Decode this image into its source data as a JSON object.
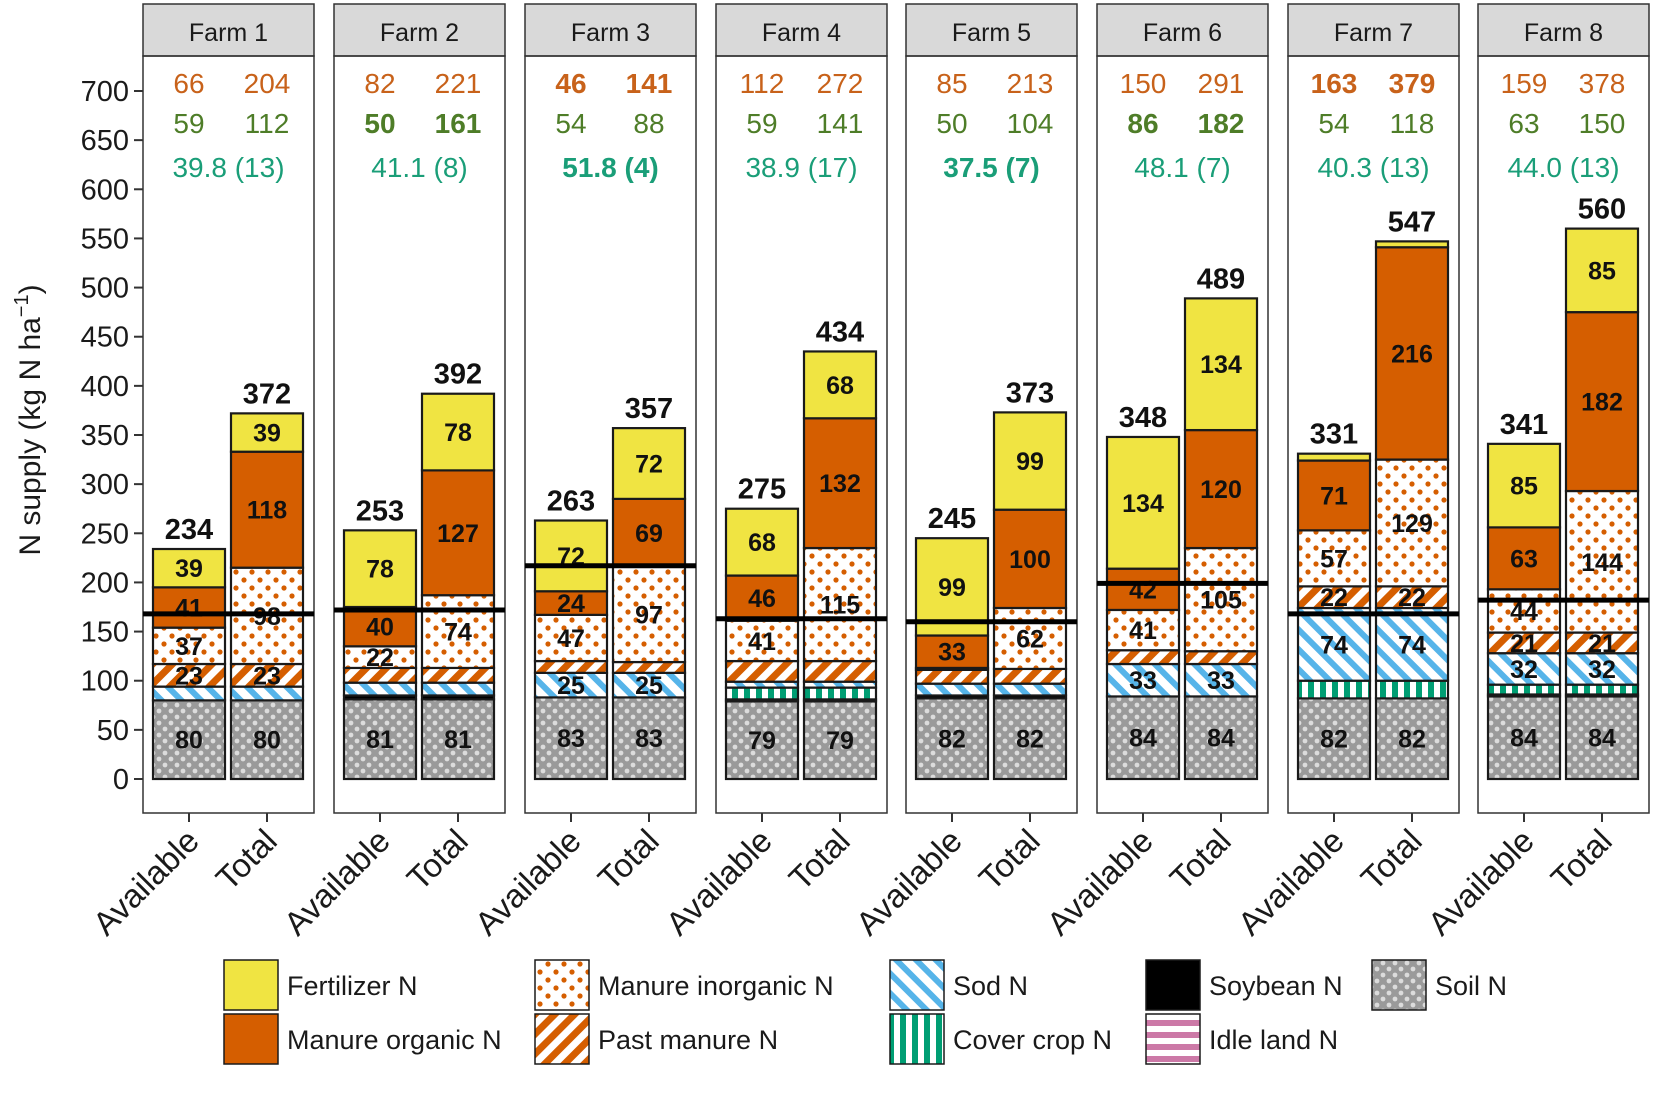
{
  "chart_data": {
    "type": "bar",
    "subtype": "stacked-faceted",
    "ylabel": "N supply (kg N ha",
    "ylabel_sup": "−1",
    "ylabel_close": ")",
    "ylim": [
      0,
      700
    ],
    "yticks": [
      "0",
      "50",
      "100",
      "150",
      "200",
      "250",
      "300",
      "350",
      "400",
      "450",
      "500",
      "550",
      "600",
      "650",
      "700"
    ],
    "categories": [
      "Available",
      "Total"
    ],
    "series": [
      {
        "name": "Soil N",
        "key": "soil"
      },
      {
        "name": "Soybean N",
        "key": "soybean"
      },
      {
        "name": "Cover crop N",
        "key": "cover"
      },
      {
        "name": "Sod N",
        "key": "sod"
      },
      {
        "name": "Idle land N",
        "key": "idle"
      },
      {
        "name": "Past manure N",
        "key": "past"
      },
      {
        "name": "Manure inorganic N",
        "key": "inorg"
      },
      {
        "name": "Manure organic N",
        "key": "org"
      },
      {
        "name": "Fertilizer N",
        "key": "fert"
      }
    ],
    "legend": {
      "placement": "bottom",
      "rows": [
        [
          {
            "label": "Fertilizer N",
            "key": "fert"
          },
          {
            "label": "Manure inorganic N",
            "key": "inorg"
          },
          {
            "label": "Sod N",
            "key": "sod"
          },
          {
            "label": "Soybean N",
            "key": "soybean"
          },
          {
            "label": "Soil N",
            "key": "soil"
          }
        ],
        [
          {
            "label": "Manure organic N",
            "key": "org"
          },
          {
            "label": "Past manure N",
            "key": "past"
          },
          {
            "label": "Cover crop N",
            "key": "cover"
          },
          {
            "label": "Idle land N",
            "key": "idle"
          }
        ]
      ]
    },
    "colors": {
      "fert": "#F0E442",
      "org": "#D55E00",
      "inorg": "#D55E00",
      "past": "#D55E00",
      "sod": "#56B4E9",
      "cover": "#009E73",
      "soybean": "#000000",
      "idle": "#CC79A7",
      "soil": "#999999",
      "header_text_orange": "#C8621A",
      "header_text_green": "#4E7D28",
      "header_text_teal": "#1A9E78",
      "strip_fill": "#D9D9D9"
    },
    "facets": [
      {
        "name": "Farm 1",
        "header": {
          "row1": [
            "66",
            "204"
          ],
          "row1_bold": false,
          "row2": [
            "59",
            "112"
          ],
          "row2_bold": false,
          "row3": "39.8 (13)",
          "row3_bold": false
        },
        "reference_line": 168,
        "bars": [
          {
            "category": "Available",
            "total": "234",
            "stack": {
              "soil": 80,
              "soybean": 0,
              "cover": 0,
              "sod": 14,
              "idle": 0,
              "past": 23,
              "inorg": 37,
              "org": 41,
              "fert": 39
            },
            "labels": {
              "soil": "80",
              "past": "23",
              "inorg": "37",
              "org": "41",
              "fert": "39"
            }
          },
          {
            "category": "Total",
            "total": "372",
            "stack": {
              "soil": 80,
              "soybean": 0,
              "cover": 0,
              "sod": 14,
              "idle": 0,
              "past": 23,
              "inorg": 98,
              "org": 118,
              "fert": 39
            },
            "labels": {
              "soil": "80",
              "past": "23",
              "inorg": "98",
              "org": "118",
              "fert": "39"
            }
          }
        ]
      },
      {
        "name": "Farm 2",
        "header": {
          "row1": [
            "82",
            "221"
          ],
          "row1_bold": false,
          "row2": [
            "50",
            "161"
          ],
          "row2_bold": true,
          "row3": "41.1 (8)",
          "row3_bold": false
        },
        "reference_line": 172,
        "bars": [
          {
            "category": "Available",
            "total": "253",
            "stack": {
              "soil": 81,
              "soybean": 4,
              "cover": 0,
              "sod": 13,
              "idle": 0,
              "past": 15,
              "inorg": 22,
              "org": 40,
              "fert": 78
            },
            "labels": {
              "soil": "81",
              "inorg": "22",
              "org": "40",
              "fert": "78"
            }
          },
          {
            "category": "Total",
            "total": "392",
            "stack": {
              "soil": 81,
              "soybean": 4,
              "cover": 0,
              "sod": 13,
              "idle": 0,
              "past": 15,
              "inorg": 74,
              "org": 127,
              "fert": 78
            },
            "labels": {
              "soil": "81",
              "inorg": "74",
              "org": "127",
              "fert": "78"
            }
          }
        ]
      },
      {
        "name": "Farm 3",
        "header": {
          "row1": [
            "46",
            "141"
          ],
          "row1_bold": true,
          "row2": [
            "54",
            "88"
          ],
          "row2_bold": false,
          "row3": "51.8 (4)",
          "row3_bold": true
        },
        "reference_line": 217,
        "bars": [
          {
            "category": "Available",
            "total": "263",
            "stack": {
              "soil": 83,
              "soybean": 0,
              "cover": 0,
              "sod": 25,
              "idle": 0,
              "past": 12,
              "inorg": 47,
              "org": 24,
              "fert": 72
            },
            "labels": {
              "soil": "83",
              "sod": "25",
              "inorg": "47",
              "org": "24",
              "fert": "72"
            }
          },
          {
            "category": "Total",
            "total": "357",
            "stack": {
              "soil": 83,
              "soybean": 0,
              "cover": 0,
              "sod": 25,
              "idle": 0,
              "past": 11,
              "inorg": 97,
              "org": 69,
              "fert": 72
            },
            "labels": {
              "soil": "83",
              "sod": "25",
              "inorg": "97",
              "org": "69",
              "fert": "72"
            }
          }
        ]
      },
      {
        "name": "Farm 4",
        "header": {
          "row1": [
            "112",
            "272"
          ],
          "row1_bold": false,
          "row2": [
            "59",
            "141"
          ],
          "row2_bold": false,
          "row3": "38.9 (17)",
          "row3_bold": false
        },
        "reference_line": 163,
        "bars": [
          {
            "category": "Available",
            "total": "275",
            "stack": {
              "soil": 79,
              "soybean": 2,
              "cover": 12,
              "sod": 6,
              "idle": 0,
              "past": 21,
              "inorg": 41,
              "org": 46,
              "fert": 68
            },
            "labels": {
              "soil": "79",
              "inorg": "41",
              "org": "46",
              "fert": "68"
            }
          },
          {
            "category": "Total",
            "total": "434",
            "stack": {
              "soil": 79,
              "soybean": 2,
              "cover": 12,
              "sod": 6,
              "idle": 0,
              "past": 21,
              "inorg": 115,
              "org": 132,
              "fert": 68
            },
            "labels": {
              "soil": "79",
              "inorg": "115",
              "org": "132",
              "fert": "68"
            }
          }
        ]
      },
      {
        "name": "Farm 5",
        "header": {
          "row1": [
            "85",
            "213"
          ],
          "row1_bold": false,
          "row2": [
            "50",
            "104"
          ],
          "row2_bold": false,
          "row3": "37.5 (7)",
          "row3_bold": true
        },
        "reference_line": 160,
        "bars": [
          {
            "category": "Available",
            "total": "245",
            "stack": {
              "soil": 82,
              "soybean": 3,
              "cover": 0,
              "sod": 12,
              "idle": 0,
              "past": 14,
              "inorg": 2,
              "org": 33,
              "fert": 99
            },
            "labels": {
              "soil": "82",
              "org": "33",
              "fert": "99"
            }
          },
          {
            "category": "Total",
            "total": "373",
            "stack": {
              "soil": 82,
              "soybean": 3,
              "cover": 0,
              "sod": 12,
              "idle": 0,
              "past": 15,
              "inorg": 62,
              "org": 100,
              "fert": 99
            },
            "labels": {
              "soil": "82",
              "inorg": "62",
              "org": "100",
              "fert": "99"
            }
          }
        ]
      },
      {
        "name": "Farm 6",
        "header": {
          "row1": [
            "150",
            "291"
          ],
          "row1_bold": false,
          "row2": [
            "86",
            "182"
          ],
          "row2_bold": true,
          "row3": "48.1 (7)",
          "row3_bold": false
        },
        "reference_line": 199,
        "bars": [
          {
            "category": "Available",
            "total": "348",
            "stack": {
              "soil": 84,
              "soybean": 0,
              "cover": 0,
              "sod": 33,
              "idle": 0,
              "past": 14,
              "inorg": 41,
              "org": 42,
              "fert": 134
            },
            "labels": {
              "soil": "84",
              "sod": "33",
              "inorg": "41",
              "org": "42",
              "fert": "134"
            }
          },
          {
            "category": "Total",
            "total": "489",
            "stack": {
              "soil": 84,
              "soybean": 0,
              "cover": 0,
              "sod": 33,
              "idle": 0,
              "past": 13,
              "inorg": 105,
              "org": 120,
              "fert": 134
            },
            "labels": {
              "soil": "84",
              "sod": "33",
              "inorg": "105",
              "org": "120",
              "fert": "134"
            }
          }
        ]
      },
      {
        "name": "Farm 7",
        "header": {
          "row1": [
            "163",
            "379"
          ],
          "row1_bold": true,
          "row2": [
            "54",
            "118"
          ],
          "row2_bold": false,
          "row3": "40.3 (13)",
          "row3_bold": false
        },
        "reference_line": 168,
        "bars": [
          {
            "category": "Available",
            "total": "331",
            "stack": {
              "soil": 82,
              "soybean": 0,
              "cover": 18,
              "sod": 74,
              "idle": 0,
              "past": 22,
              "inorg": 57,
              "org": 71,
              "fert": 7
            },
            "labels": {
              "soil": "82",
              "sod": "74",
              "past": "22",
              "inorg": "57",
              "org": "71"
            }
          },
          {
            "category": "Total",
            "total": "547",
            "stack": {
              "soil": 82,
              "soybean": 0,
              "cover": 18,
              "sod": 74,
              "idle": 0,
              "past": 22,
              "inorg": 129,
              "org": 216,
              "fert": 6
            },
            "labels": {
              "soil": "82",
              "sod": "74",
              "past": "22",
              "inorg": "129",
              "org": "216"
            }
          }
        ]
      },
      {
        "name": "Farm 8",
        "header": {
          "row1": [
            "159",
            "378"
          ],
          "row1_bold": false,
          "row2": [
            "63",
            "150"
          ],
          "row2_bold": false,
          "row3": "44.0 (13)",
          "row3_bold": false
        },
        "reference_line": 182,
        "bars": [
          {
            "category": "Available",
            "total": "341",
            "stack": {
              "soil": 84,
              "soybean": 2,
              "cover": 10,
              "sod": 32,
              "idle": 0,
              "past": 21,
              "inorg": 44,
              "org": 63,
              "fert": 85
            },
            "labels": {
              "soil": "84",
              "sod": "32",
              "past": "21",
              "inorg": "44",
              "org": "63",
              "fert": "85"
            }
          },
          {
            "category": "Total",
            "total": "560",
            "stack": {
              "soil": 84,
              "soybean": 2,
              "cover": 10,
              "sod": 32,
              "idle": 0,
              "past": 21,
              "inorg": 144,
              "org": 182,
              "fert": 85
            },
            "labels": {
              "soil": "84",
              "sod": "32",
              "past": "21",
              "inorg": "144",
              "org": "182",
              "fert": "85"
            }
          }
        ]
      }
    ]
  }
}
